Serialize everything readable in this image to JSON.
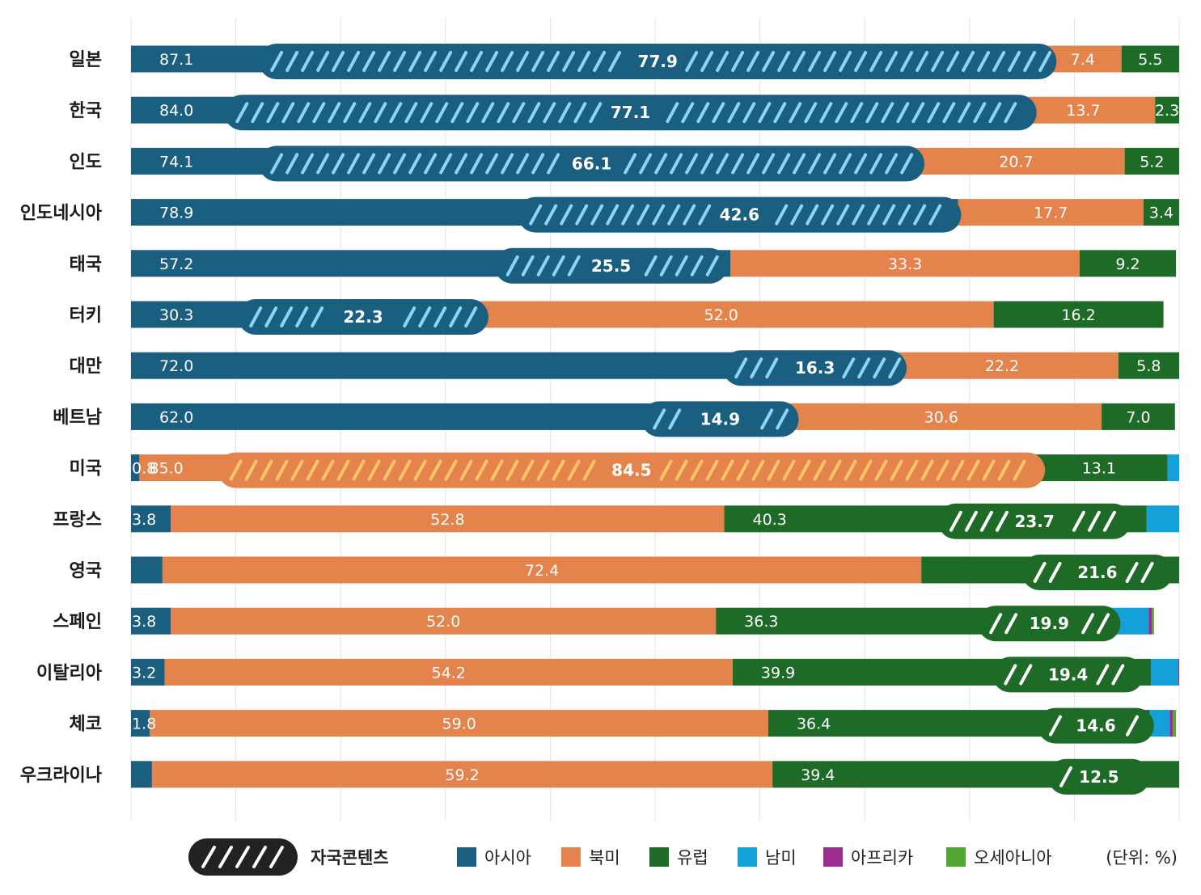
{
  "chart_data": {
    "type": "bar",
    "stacked": true,
    "orientation": "horizontal",
    "xlim": [
      0,
      100
    ],
    "grid": true,
    "legend_position": "bottom",
    "categories": [
      "일본",
      "한국",
      "인도",
      "인도네시아",
      "태국",
      "터키",
      "대만",
      "베트남",
      "미국",
      "프랑스",
      "영국",
      "스페인",
      "이탈리아",
      "체코",
      "우크라이나"
    ],
    "series": [
      {
        "name": "아시아",
        "color": "#1a5e80",
        "values": [
          87.1,
          84.0,
          74.1,
          78.9,
          57.2,
          30.3,
          72.0,
          62.0,
          0.8,
          3.8,
          3.0,
          3.8,
          3.2,
          1.8,
          2.0
        ]
      },
      {
        "name": "북미",
        "color": "#e5834c",
        "values": [
          7.4,
          13.7,
          20.7,
          17.7,
          33.3,
          52.0,
          22.2,
          30.6,
          85.0,
          52.8,
          72.4,
          52.0,
          54.2,
          59.0,
          59.2
        ]
      },
      {
        "name": "유럽",
        "color": "#1d6b27",
        "values": [
          5.5,
          2.3,
          5.2,
          3.4,
          9.2,
          16.2,
          5.8,
          7.0,
          13.1,
          40.3,
          25.8,
          36.3,
          39.9,
          36.4,
          39.4
        ]
      },
      {
        "name": "남미",
        "color": "#14a0d8",
        "values": [
          0,
          0,
          0,
          0,
          0,
          0,
          0,
          0,
          3.0,
          3.4,
          0,
          5.0,
          2.6,
          1.9,
          0.7
        ]
      },
      {
        "name": "아프리카",
        "color": "#9c2c8e",
        "values": [
          0,
          0,
          0,
          0,
          0,
          0,
          0,
          0,
          0,
          0.6,
          0.2,
          0.3,
          0.3,
          0.3,
          0
        ]
      },
      {
        "name": "오세아니아",
        "color": "#52a832",
        "values": [
          0,
          0,
          0,
          0,
          0,
          0,
          0,
          0,
          0,
          0.7,
          0.3,
          0.2,
          0.3,
          0.3,
          0
        ]
      }
    ],
    "value_labels": [
      [
        "87.1",
        "7.4",
        "5.5"
      ],
      [
        "84.0",
        "13.7",
        "2.3"
      ],
      [
        "74.1",
        "20.7",
        "5.2"
      ],
      [
        "78.9",
        "17.7",
        "3.4"
      ],
      [
        "57.2",
        "33.3",
        "9.2"
      ],
      [
        "30.3",
        "52.0",
        "16.2"
      ],
      [
        "72.0",
        "22.2",
        "5.8"
      ],
      [
        "62.0",
        "30.6",
        "7.0"
      ],
      [
        "0.8",
        "85.0",
        "13.1"
      ],
      [
        "3.8",
        "52.8",
        "40.3"
      ],
      [
        "",
        "72.4",
        "25.8"
      ],
      [
        "3.8",
        "52.0",
        "36.3"
      ],
      [
        "3.2",
        "54.2",
        "39.9"
      ],
      [
        "1.8",
        "59.0",
        "36.4"
      ],
      [
        "",
        "59.2",
        "39.4"
      ]
    ],
    "domestic": [
      {
        "value": 77.9,
        "label": "77.9",
        "series": "아시아",
        "start": 12.2,
        "end": 88.3
      },
      {
        "value": 77.1,
        "label": "77.1",
        "series": "아시아",
        "start": 8.9,
        "end": 86.4
      },
      {
        "value": 66.1,
        "label": "66.1",
        "series": "아시아",
        "start": 12.2,
        "end": 75.7
      },
      {
        "value": 42.6,
        "label": "42.6",
        "series": "아시아",
        "start": 36.9,
        "end": 79.2
      },
      {
        "value": 25.5,
        "label": "25.5",
        "series": "아시아",
        "start": 34.7,
        "end": 56.9
      },
      {
        "value": 22.3,
        "label": "22.3",
        "series": "아시아",
        "start": 10.2,
        "end": 34.1
      },
      {
        "value": 16.3,
        "label": "16.3",
        "series": "아시아",
        "start": 56.5,
        "end": 74.0
      },
      {
        "value": 14.9,
        "label": "14.9",
        "series": "아시아",
        "start": 48.7,
        "end": 63.7
      },
      {
        "value": 84.5,
        "label": "84.5",
        "series": "북미",
        "start": 8.3,
        "end": 87.2
      },
      {
        "value": 23.7,
        "label": "23.7",
        "series": "유럽",
        "start": 77.0,
        "end": 95.4
      },
      {
        "value": 21.6,
        "label": "21.6",
        "series": "유럽",
        "start": 85.0,
        "end": 99.4
      },
      {
        "value": 19.9,
        "label": "19.9",
        "series": "유럽",
        "start": 80.8,
        "end": 94.4
      },
      {
        "value": 19.4,
        "label": "19.4",
        "series": "유럽",
        "start": 82.2,
        "end": 96.6
      },
      {
        "value": 14.6,
        "label": "14.6",
        "series": "유럽",
        "start": 86.5,
        "end": 97.6
      },
      {
        "value": 12.5,
        "label": "12.5",
        "series": "유럽",
        "start": 87.5,
        "end": 97.2
      }
    ],
    "legend": {
      "domestic_label": "자국콘텐츠",
      "unit": "(단위: %)"
    }
  }
}
